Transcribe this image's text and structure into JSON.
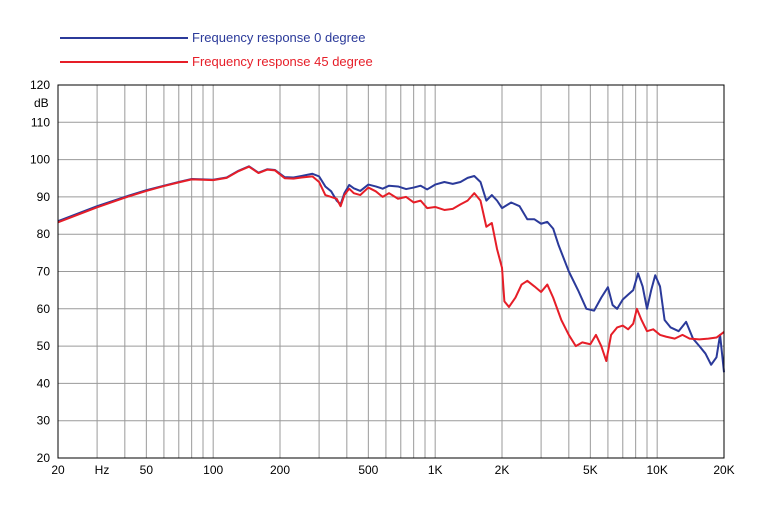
{
  "chart_data": {
    "type": "line",
    "title": "",
    "xlabel": "",
    "ylabel": "",
    "xscale": "log",
    "xlim": [
      20,
      20000
    ],
    "ylim": [
      20,
      120
    ],
    "grid": true,
    "legend_position": "top-left",
    "y_unit_label": "dB",
    "x_unit_label": "Hz",
    "y_ticks": [
      20,
      30,
      40,
      50,
      60,
      70,
      80,
      90,
      100,
      110,
      120
    ],
    "y_tick_labels": [
      "20",
      "30",
      "40",
      "50",
      "60",
      "70",
      "80",
      "90",
      "100",
      "110",
      "120"
    ],
    "x_ticks": [
      20,
      50,
      100,
      200,
      500,
      1000,
      2000,
      5000,
      10000,
      20000
    ],
    "x_tick_labels": [
      "20",
      "50",
      "100",
      "200",
      "500",
      "1K",
      "2K",
      "5K",
      "10K",
      "20K"
    ],
    "series": [
      {
        "name": "Frequency response 0 degree",
        "color": "#2b3a9a",
        "points": [
          [
            20,
            83.5
          ],
          [
            30,
            87.5
          ],
          [
            40,
            90
          ],
          [
            50,
            91.8
          ],
          [
            60,
            93
          ],
          [
            70,
            94
          ],
          [
            80,
            94.8
          ],
          [
            90,
            94.7
          ],
          [
            100,
            94.6
          ],
          [
            115,
            95.2
          ],
          [
            130,
            97
          ],
          [
            145,
            98.2
          ],
          [
            160,
            96.5
          ],
          [
            175,
            97.4
          ],
          [
            190,
            97.2
          ],
          [
            210,
            95.3
          ],
          [
            230,
            95.2
          ],
          [
            250,
            95.6
          ],
          [
            280,
            96.2
          ],
          [
            300,
            95.5
          ],
          [
            320,
            92.8
          ],
          [
            340,
            91.5
          ],
          [
            360,
            89
          ],
          [
            375,
            88
          ],
          [
            390,
            91
          ],
          [
            410,
            93.2
          ],
          [
            430,
            92.3
          ],
          [
            460,
            91.6
          ],
          [
            500,
            93.3
          ],
          [
            540,
            92.8
          ],
          [
            580,
            92.2
          ],
          [
            620,
            93
          ],
          [
            680,
            92.8
          ],
          [
            740,
            92.1
          ],
          [
            800,
            92.5
          ],
          [
            860,
            93
          ],
          [
            920,
            92
          ],
          [
            1000,
            93.3
          ],
          [
            1100,
            94
          ],
          [
            1200,
            93.5
          ],
          [
            1300,
            94
          ],
          [
            1400,
            95.1
          ],
          [
            1500,
            95.6
          ],
          [
            1600,
            94
          ],
          [
            1700,
            89
          ],
          [
            1800,
            90.5
          ],
          [
            1900,
            89
          ],
          [
            2000,
            87
          ],
          [
            2200,
            88.5
          ],
          [
            2400,
            87.5
          ],
          [
            2600,
            84
          ],
          [
            2800,
            84
          ],
          [
            3000,
            82.8
          ],
          [
            3200,
            83.3
          ],
          [
            3400,
            81.5
          ],
          [
            3600,
            77
          ],
          [
            4000,
            70
          ],
          [
            4400,
            65
          ],
          [
            4800,
            60
          ],
          [
            5200,
            59.5
          ],
          [
            5600,
            63
          ],
          [
            6000,
            65.8
          ],
          [
            6300,
            61
          ],
          [
            6600,
            60
          ],
          [
            7000,
            62.5
          ],
          [
            7400,
            63.8
          ],
          [
            7800,
            65
          ],
          [
            8200,
            69.5
          ],
          [
            8600,
            66
          ],
          [
            9000,
            60
          ],
          [
            9400,
            65
          ],
          [
            9800,
            69
          ],
          [
            10300,
            66
          ],
          [
            10800,
            57
          ],
          [
            11500,
            55
          ],
          [
            12500,
            54
          ],
          [
            13500,
            56.5
          ],
          [
            14500,
            52
          ],
          [
            15500,
            50
          ],
          [
            16500,
            48
          ],
          [
            17500,
            45
          ],
          [
            18500,
            47
          ],
          [
            19200,
            53
          ],
          [
            20000,
            43
          ]
        ]
      },
      {
        "name": "Frequency response 45 degree",
        "color": "#e61e28",
        "points": [
          [
            20,
            83.2
          ],
          [
            30,
            87.2
          ],
          [
            40,
            89.8
          ],
          [
            50,
            91.6
          ],
          [
            60,
            92.9
          ],
          [
            70,
            93.9
          ],
          [
            80,
            94.7
          ],
          [
            90,
            94.6
          ],
          [
            100,
            94.5
          ],
          [
            115,
            95.1
          ],
          [
            130,
            96.9
          ],
          [
            145,
            98.1
          ],
          [
            160,
            96.4
          ],
          [
            175,
            97.3
          ],
          [
            190,
            97.1
          ],
          [
            210,
            95
          ],
          [
            230,
            94.9
          ],
          [
            250,
            95.2
          ],
          [
            280,
            95.5
          ],
          [
            300,
            94
          ],
          [
            320,
            90.5
          ],
          [
            340,
            90
          ],
          [
            360,
            89.5
          ],
          [
            375,
            87.5
          ],
          [
            390,
            90.5
          ],
          [
            410,
            92.2
          ],
          [
            430,
            91
          ],
          [
            460,
            90.5
          ],
          [
            500,
            92.5
          ],
          [
            540,
            91.5
          ],
          [
            580,
            90
          ],
          [
            620,
            91
          ],
          [
            680,
            89.5
          ],
          [
            740,
            90
          ],
          [
            800,
            88.5
          ],
          [
            860,
            89
          ],
          [
            920,
            87
          ],
          [
            1000,
            87.3
          ],
          [
            1100,
            86.5
          ],
          [
            1200,
            86.8
          ],
          [
            1300,
            88
          ],
          [
            1400,
            89
          ],
          [
            1500,
            91
          ],
          [
            1600,
            89
          ],
          [
            1700,
            82
          ],
          [
            1800,
            83
          ],
          [
            1900,
            76
          ],
          [
            2000,
            71
          ],
          [
            2050,
            62
          ],
          [
            2150,
            60.5
          ],
          [
            2300,
            63
          ],
          [
            2450,
            66.5
          ],
          [
            2600,
            67.5
          ],
          [
            2800,
            66
          ],
          [
            3000,
            64.5
          ],
          [
            3200,
            66.5
          ],
          [
            3400,
            63
          ],
          [
            3700,
            57
          ],
          [
            4000,
            53
          ],
          [
            4300,
            50
          ],
          [
            4600,
            51
          ],
          [
            5000,
            50.5
          ],
          [
            5300,
            53
          ],
          [
            5600,
            50
          ],
          [
            5900,
            46
          ],
          [
            6200,
            53
          ],
          [
            6600,
            55
          ],
          [
            7000,
            55.5
          ],
          [
            7400,
            54.5
          ],
          [
            7800,
            56
          ],
          [
            8100,
            60
          ],
          [
            8500,
            57
          ],
          [
            9000,
            54
          ],
          [
            9600,
            54.5
          ],
          [
            10300,
            53
          ],
          [
            11000,
            52.5
          ],
          [
            12000,
            52
          ],
          [
            13000,
            53
          ],
          [
            14000,
            52
          ],
          [
            15500,
            51.8
          ],
          [
            17000,
            52
          ],
          [
            18500,
            52.3
          ],
          [
            19500,
            53.3
          ],
          [
            20000,
            53.8
          ]
        ]
      }
    ]
  }
}
